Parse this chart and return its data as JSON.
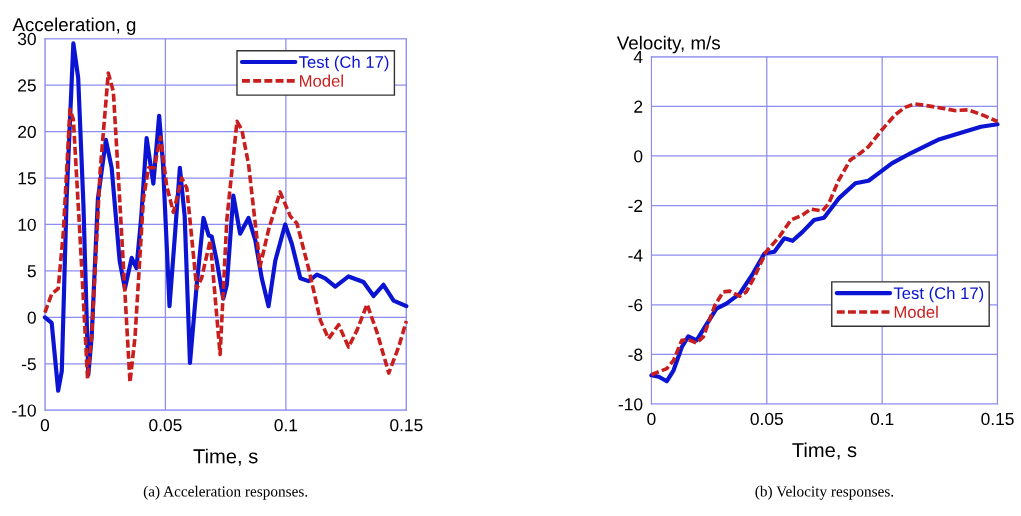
{
  "chart_data": [
    {
      "type": "line",
      "ylabel": "Acceleration, g",
      "xlabel": "Time, s",
      "annotations": [
        "(a) Acceleration responses."
      ],
      "xlim": [
        0,
        0.15
      ],
      "xticks": [
        0,
        0.05,
        0.1,
        0.15
      ],
      "ylim": [
        -10,
        30
      ],
      "yticks": [
        -10,
        -5,
        0,
        5,
        10,
        15,
        20,
        25,
        30
      ],
      "grid": true,
      "legend": "top right",
      "marker": "none",
      "series": [
        {
          "name": "Test (Ch 17)",
          "color": "#0a14d2",
          "line_style": "solid",
          "x": [
            0,
            0.0028,
            0.0055,
            0.007,
            0.009,
            0.0118,
            0.0138,
            0.016,
            0.018,
            0.0194,
            0.022,
            0.0253,
            0.0277,
            0.031,
            0.0332,
            0.036,
            0.038,
            0.04,
            0.0422,
            0.045,
            0.0474,
            0.049,
            0.0517,
            0.054,
            0.056,
            0.058,
            0.0602,
            0.063,
            0.0658,
            0.068,
            0.0692,
            0.0713,
            0.074,
            0.0755,
            0.0782,
            0.081,
            0.0845,
            0.0873,
            0.09,
            0.0928,
            0.0956,
            0.0997,
            0.1025,
            0.106,
            0.1094,
            0.1129,
            0.1163,
            0.1205,
            0.126,
            0.1322,
            0.1364,
            0.1405,
            0.1447,
            0.15
          ],
          "values": [
            0,
            -0.6,
            -7.9,
            -5.8,
            12.8,
            29.5,
            25.8,
            12,
            -6.2,
            -2.1,
            12.8,
            19.1,
            16.1,
            6.1,
            3.1,
            6.4,
            5.3,
            10.9,
            19.3,
            14.4,
            21.7,
            16.5,
            1.2,
            9.0,
            16.1,
            10.9,
            -4.9,
            3.5,
            10.7,
            8.8,
            8.7,
            6.1,
            2.0,
            3.5,
            13.1,
            9.0,
            10.7,
            8.3,
            4.2,
            1.2,
            6.1,
            10.0,
            7.9,
            4.2,
            3.9,
            4.6,
            4.2,
            3.3,
            4.4,
            3.8,
            2.3,
            3.5,
            1.8,
            1.2
          ]
        },
        {
          "name": "Model",
          "color": "#c81e1e",
          "line_style": "dashed",
          "x": [
            0,
            0.0028,
            0.0055,
            0.0076,
            0.0104,
            0.0118,
            0.0145,
            0.0177,
            0.0194,
            0.0229,
            0.0263,
            0.0284,
            0.031,
            0.0353,
            0.0374,
            0.0409,
            0.043,
            0.0453,
            0.048,
            0.0505,
            0.0533,
            0.0568,
            0.0589,
            0.063,
            0.065,
            0.0686,
            0.0727,
            0.0755,
            0.0797,
            0.0817,
            0.0845,
            0.0893,
            0.0928,
            0.0976,
            0.1018,
            0.1046,
            0.1094,
            0.1143,
            0.1177,
            0.1219,
            0.126,
            0.1295,
            0.1337,
            0.1378,
            0.1427,
            0.1468,
            0.15
          ],
          "values": [
            0.5,
            2.5,
            3.1,
            9.0,
            22.4,
            21.3,
            9.0,
            -6.6,
            -2.1,
            15.7,
            26.3,
            24.3,
            12.8,
            -7.0,
            -2.1,
            12.8,
            16.1,
            16.1,
            19.4,
            14.2,
            11.3,
            15.0,
            13.9,
            3.1,
            4.2,
            8.3,
            -4.0,
            10.5,
            21.1,
            20.2,
            16.5,
            5.5,
            9.4,
            13.5,
            10.9,
            10.1,
            5.3,
            -0.3,
            -2.3,
            -0.8,
            -3.2,
            -1.4,
            1.4,
            -1.6,
            -6.0,
            -3.2,
            -0.4
          ]
        }
      ]
    },
    {
      "type": "line",
      "ylabel": "Velocity, m/s",
      "xlabel": "Time, s",
      "annotations": [
        "(b) Velocity responses."
      ],
      "xlim": [
        0,
        0.15
      ],
      "xticks": [
        0,
        0.05,
        0.1,
        0.15
      ],
      "ylim": [
        -10,
        4
      ],
      "yticks": [
        -10,
        -8,
        -6,
        -4,
        -2,
        0,
        2,
        4
      ],
      "grid": true,
      "legend": "bottom right",
      "marker": "none",
      "series": [
        {
          "name": "Test (Ch 17)",
          "color": "#0a14d2",
          "line_style": "solid",
          "x": [
            0,
            0.0032,
            0.0067,
            0.0096,
            0.0132,
            0.016,
            0.0196,
            0.0232,
            0.0282,
            0.0325,
            0.0383,
            0.044,
            0.049,
            0.0533,
            0.0576,
            0.0612,
            0.0655,
            0.0705,
            0.0748,
            0.0812,
            0.0884,
            0.0941,
            0.0984,
            0.1042,
            0.1127,
            0.1242,
            0.1342,
            0.1428,
            0.15
          ],
          "values": [
            -8.84,
            -8.9,
            -9.08,
            -8.64,
            -7.7,
            -7.27,
            -7.43,
            -6.89,
            -6.15,
            -5.95,
            -5.55,
            -4.74,
            -3.93,
            -3.86,
            -3.32,
            -3.42,
            -3.06,
            -2.58,
            -2.49,
            -1.71,
            -1.1,
            -1.0,
            -0.7,
            -0.3,
            0.13,
            0.65,
            0.94,
            1.18,
            1.28
          ]
        },
        {
          "name": "Model",
          "color": "#c81e1e",
          "line_style": "dashed",
          "x": [
            0,
            0.0067,
            0.0096,
            0.0132,
            0.016,
            0.0196,
            0.0225,
            0.0275,
            0.0311,
            0.034,
            0.0383,
            0.0411,
            0.0447,
            0.0497,
            0.0554,
            0.0605,
            0.0655,
            0.0691,
            0.0741,
            0.0769,
            0.0812,
            0.0862,
            0.0905,
            0.0941,
            0.0999,
            0.1056,
            0.1099,
            0.1142,
            0.1199,
            0.1271,
            0.1314,
            0.1371,
            0.1428,
            0.15
          ],
          "values": [
            -8.82,
            -8.57,
            -8.24,
            -7.43,
            -7.4,
            -7.54,
            -7.29,
            -6.02,
            -5.48,
            -5.45,
            -5.65,
            -5.48,
            -4.87,
            -3.86,
            -3.26,
            -2.58,
            -2.38,
            -2.14,
            -2.22,
            -1.91,
            -0.97,
            -0.16,
            0.11,
            0.38,
            1.05,
            1.66,
            1.96,
            2.1,
            2.02,
            1.91,
            1.83,
            1.86,
            1.68,
            1.39
          ]
        }
      ]
    }
  ]
}
